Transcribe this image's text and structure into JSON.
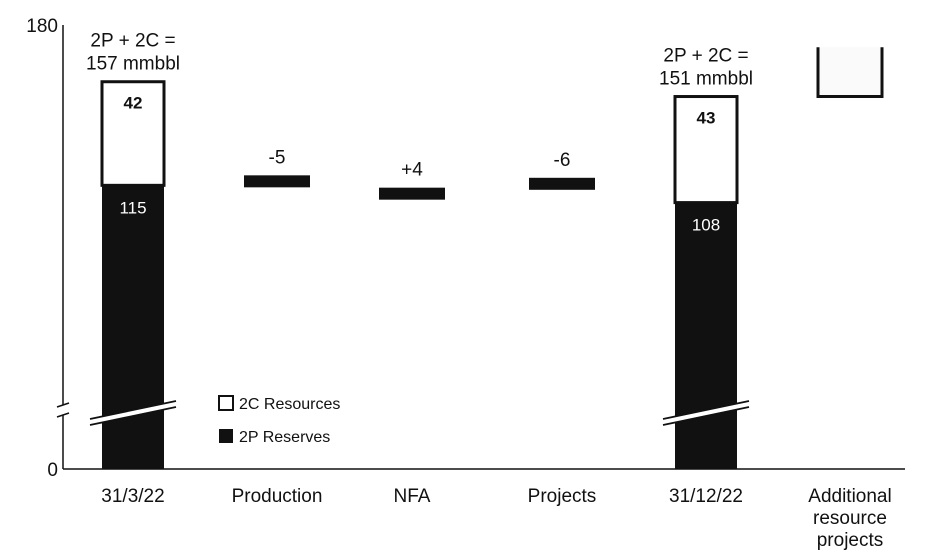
{
  "chart_data": {
    "type": "bar",
    "subtype": "waterfall",
    "categories": [
      "31/3/22",
      "Production",
      "NFA",
      "Projects",
      "31/12/22",
      "Additional resource projects"
    ],
    "category_lines": [
      [
        "31/3/22"
      ],
      [
        "Production"
      ],
      [
        "NFA"
      ],
      [
        "Projects"
      ],
      [
        "31/12/22"
      ],
      [
        "Additional",
        "resource",
        "projects"
      ]
    ],
    "y_ticks": [
      "0",
      "180"
    ],
    "ylim": [
      0,
      180
    ],
    "axis_break": true,
    "series": [
      {
        "name": "2P Reserves",
        "values": [
          115,
          null,
          null,
          null,
          108,
          null
        ]
      },
      {
        "name": "2C Resources",
        "values": [
          42,
          null,
          null,
          null,
          43,
          null
        ]
      }
    ],
    "deltas": [
      {
        "category": "Production",
        "value": -5,
        "label": "-5"
      },
      {
        "category": "NFA",
        "value": 4,
        "label": "+4"
      },
      {
        "category": "Projects",
        "value": -6,
        "label": "-6"
      }
    ],
    "totals": [
      {
        "category": "31/3/22",
        "lines": [
          "2P + 2C =",
          "157 mmbbl"
        ],
        "value": 157
      },
      {
        "category": "31/12/22",
        "lines": [
          "2P + 2C =",
          "151 mmbbl"
        ],
        "value": 151
      }
    ],
    "segment_labels": {
      "31/3/22": {
        "reserves": "115",
        "resources": "42"
      },
      "31/12/22": {
        "reserves": "108",
        "resources": "43"
      }
    },
    "additional_resource_bar": {
      "category": "Additional resource projects",
      "range": [
        151,
        171
      ]
    },
    "legend": [
      {
        "label": "2C Resources",
        "swatch": "white"
      },
      {
        "label": "2P Reserves",
        "swatch": "black"
      }
    ],
    "legend_position": "center-left",
    "grid": false,
    "colors": {
      "reserves": "#111111",
      "resources": "#ffffff",
      "outline": "#111111"
    }
  }
}
